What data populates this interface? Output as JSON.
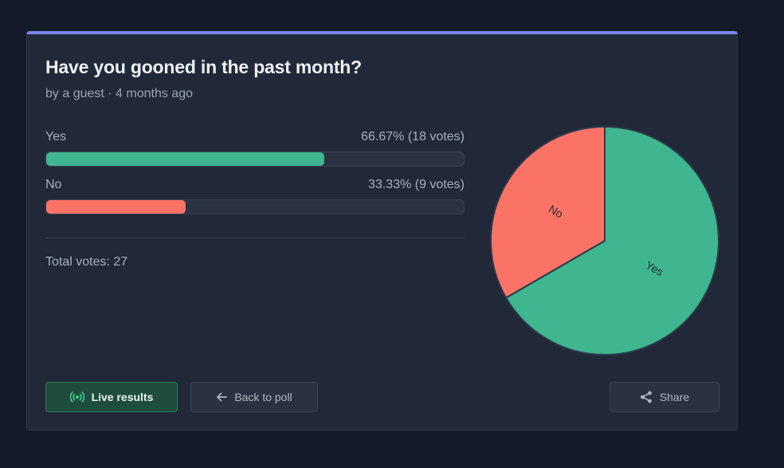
{
  "poll": {
    "title": "Have you gooned in the past month?",
    "meta": "by a guest · 4 months ago",
    "total_label": "Total votes: 27",
    "accent_color": "#7c86ef"
  },
  "options": [
    {
      "label": "Yes",
      "stat": "66.67% (18 votes)",
      "percent": 66.67,
      "votes": 18,
      "color": "#3fb68f"
    },
    {
      "label": "No",
      "stat": "33.33% (9 votes)",
      "percent": 33.33,
      "votes": 9,
      "color": "#fa7366"
    }
  ],
  "chart_data": {
    "type": "pie",
    "categories": [
      "Yes",
      "No"
    ],
    "values": [
      18,
      9
    ],
    "colors": [
      "#3fb68f",
      "#fa7366"
    ]
  },
  "buttons": {
    "live": "Live results",
    "back": "Back to poll",
    "share": "Share"
  },
  "icons": {
    "live": "broadcast-icon",
    "back": "arrow-left-icon",
    "share": "share-icon"
  }
}
